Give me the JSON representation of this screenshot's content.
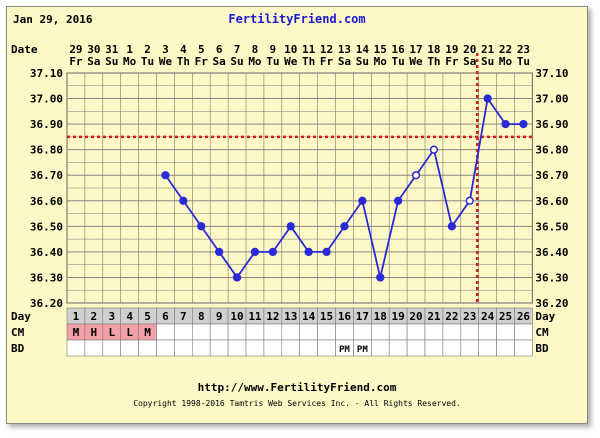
{
  "header": {
    "date": "Jan 29, 2016",
    "brand": "FertilityFriend.com"
  },
  "footer": {
    "url": "http://www.FertilityFriend.com",
    "copyright": "Copyright 1998-2016 Tamtris Web Services Inc. - All Rights Reserved."
  },
  "row_labels": {
    "date": "Date",
    "day": "Day",
    "cm": "CM",
    "bd": "BD"
  },
  "colors": {
    "background": "#fdf8c6",
    "line": "#2a2ad6",
    "coverline": "#d22020",
    "ovulation": "#d22020",
    "cm_fill": "#f4a0a8",
    "gray_cell": "#d0d0d0"
  },
  "chart_data": {
    "type": "line",
    "ylim": [
      36.2,
      37.1
    ],
    "yticks": [
      "36.20",
      "36.30",
      "36.40",
      "36.50",
      "36.60",
      "36.70",
      "36.80",
      "36.90",
      "37.00",
      "37.10"
    ],
    "dates": [
      "29",
      "30",
      "31",
      "1",
      "2",
      "3",
      "4",
      "5",
      "6",
      "7",
      "8",
      "9",
      "10",
      "11",
      "12",
      "13",
      "14",
      "15",
      "16",
      "17",
      "18",
      "19",
      "20",
      "21",
      "22",
      "23"
    ],
    "weekdays": [
      "Fr",
      "Sa",
      "Su",
      "Mo",
      "Tu",
      "We",
      "Th",
      "Fr",
      "Sa",
      "Su",
      "Mo",
      "Tu",
      "We",
      "Th",
      "Fr",
      "Sa",
      "Su",
      "Mo",
      "Tu",
      "We",
      "Th",
      "Fr",
      "Sa",
      "Su",
      "Mo",
      "Tu"
    ],
    "days": [
      "1",
      "2",
      "3",
      "4",
      "5",
      "6",
      "7",
      "8",
      "9",
      "10",
      "11",
      "12",
      "13",
      "14",
      "15",
      "16",
      "17",
      "18",
      "19",
      "20",
      "21",
      "22",
      "23",
      "24",
      "25",
      "26"
    ],
    "cm": [
      "M",
      "H",
      "L",
      "L",
      "M",
      "",
      "",
      "",
      "",
      "",
      "",
      "",
      "",
      "",
      "",
      "",
      "",
      "",
      "",
      "",
      "",
      "",
      "",
      "",
      "",
      ""
    ],
    "bd": [
      "",
      "",
      "",
      "",
      "",
      "",
      "",
      "",
      "",
      "",
      "",
      "",
      "",
      "",
      "",
      "PM",
      "PM",
      "",
      "",
      "",
      "",
      "",
      "",
      "",
      "",
      ""
    ],
    "temps": [
      null,
      null,
      null,
      null,
      null,
      36.7,
      36.6,
      36.5,
      36.4,
      36.3,
      36.4,
      36.4,
      36.5,
      36.4,
      36.4,
      36.5,
      36.6,
      36.3,
      36.6,
      36.7,
      36.8,
      36.5,
      36.6,
      37.0,
      36.9,
      36.9
    ],
    "open_points": [
      20,
      21,
      23
    ],
    "coverline": 36.85,
    "ovulation_day": 23
  }
}
